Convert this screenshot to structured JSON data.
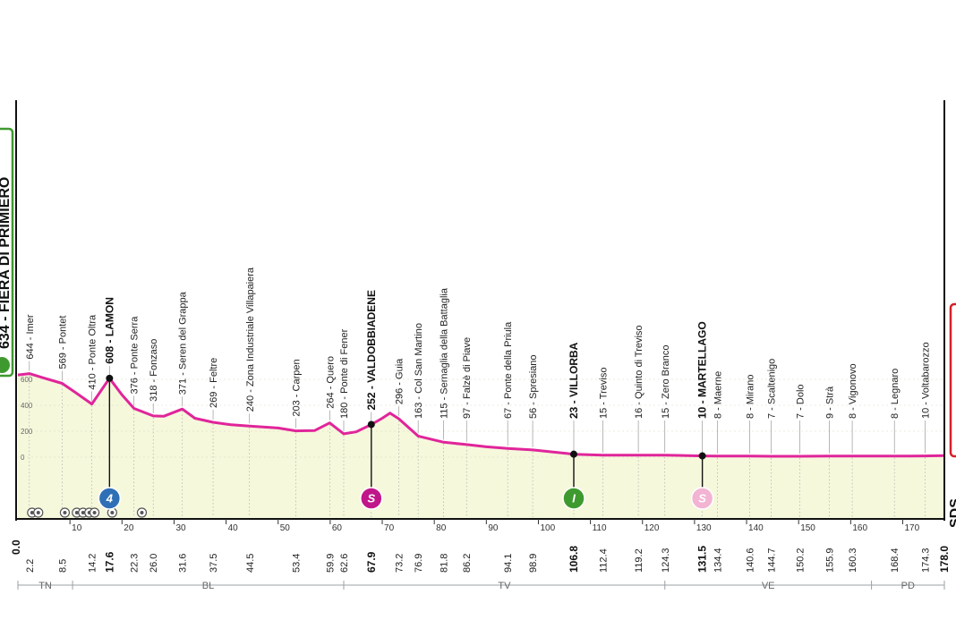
{
  "chart_data": {
    "type": "area",
    "x_unit": "km",
    "xlim": [
      0,
      178
    ],
    "ylim": [
      0,
      700
    ],
    "y_ticks": [
      "200",
      "400",
      "600",
      "0"
    ],
    "x_ticks": [
      "10",
      "20",
      "30",
      "40",
      "50",
      "60",
      "70",
      "80",
      "90",
      "100",
      "110",
      "120",
      "130",
      "140",
      "150",
      "160",
      "170"
    ],
    "profile": [
      [
        0,
        634
      ],
      [
        2.2,
        644
      ],
      [
        5,
        610
      ],
      [
        8.5,
        569
      ],
      [
        11,
        500
      ],
      [
        14.2,
        410
      ],
      [
        17.6,
        608
      ],
      [
        20,
        480
      ],
      [
        22.3,
        376
      ],
      [
        26,
        318
      ],
      [
        28,
        315
      ],
      [
        31.6,
        371
      ],
      [
        34,
        300
      ],
      [
        37.5,
        269
      ],
      [
        41,
        250
      ],
      [
        44.5,
        240
      ],
      [
        50,
        225
      ],
      [
        53.4,
        203
      ],
      [
        57,
        205
      ],
      [
        59.9,
        264
      ],
      [
        62.6,
        180
      ],
      [
        65,
        195
      ],
      [
        67.9,
        252
      ],
      [
        70,
        300
      ],
      [
        71.5,
        340
      ],
      [
        73.2,
        296
      ],
      [
        76.9,
        163
      ],
      [
        81.8,
        115
      ],
      [
        86.2,
        97
      ],
      [
        90,
        80
      ],
      [
        94.1,
        67
      ],
      [
        98.9,
        56
      ],
      [
        106.8,
        23
      ],
      [
        112.4,
        15
      ],
      [
        119.2,
        16
      ],
      [
        124.3,
        15
      ],
      [
        131.5,
        10
      ],
      [
        134.4,
        8
      ],
      [
        140.6,
        8
      ],
      [
        144.7,
        7
      ],
      [
        150.2,
        7
      ],
      [
        155.9,
        9
      ],
      [
        160.3,
        8
      ],
      [
        168.4,
        8
      ],
      [
        174.3,
        10
      ],
      [
        178,
        12
      ]
    ],
    "start": {
      "name": "FIERA DI PRIMIERO",
      "alt": "634",
      "km": "0.0"
    },
    "finish": {
      "name": "SDS"
    },
    "places": [
      {
        "km": 2.2,
        "km_label": "2.2",
        "label": "644 - Imer",
        "bold": false
      },
      {
        "km": 8.5,
        "km_label": "8.5",
        "label": "569 - Pontet",
        "bold": false
      },
      {
        "km": 14.2,
        "km_label": "14.2",
        "label": "410 - Ponte Oltra",
        "bold": false
      },
      {
        "km": 17.6,
        "km_label": "17.6",
        "label": "608 - LAMON",
        "bold": true
      },
      {
        "km": 22.3,
        "km_label": "22.3",
        "label": "376 - Ponte Serra",
        "bold": false
      },
      {
        "km": 26.0,
        "km_label": "26.0",
        "label": "318 - Fonzaso",
        "bold": false
      },
      {
        "km": 31.6,
        "km_label": "31.6",
        "label": "371 - Seren del Grappa",
        "bold": false
      },
      {
        "km": 37.5,
        "km_label": "37.5",
        "label": "269 - Feltre",
        "bold": false
      },
      {
        "km": 44.5,
        "km_label": "44.5",
        "label": "240 - Zona Industriale Villapaiera",
        "bold": false
      },
      {
        "km": 53.4,
        "km_label": "53.4",
        "label": "203 - Carpen",
        "bold": false
      },
      {
        "km": 59.9,
        "km_label": "59.9",
        "label": "264 - Quero",
        "bold": false
      },
      {
        "km": 62.6,
        "km_label": "62.6",
        "label": "180 - Ponte di Fener",
        "bold": false
      },
      {
        "km": 67.9,
        "km_label": "67.9",
        "label": "252 - VALDOBBIADENE",
        "bold": true
      },
      {
        "km": 73.2,
        "km_label": "73.2",
        "label": "296 - Guia",
        "bold": false
      },
      {
        "km": 76.9,
        "km_label": "76.9",
        "label": "163 - Col San Martino",
        "bold": false
      },
      {
        "km": 81.8,
        "km_label": "81.8",
        "label": "115 - Sernaglia della Battaglia",
        "bold": false
      },
      {
        "km": 86.2,
        "km_label": "86.2",
        "label": "97 - Falzè di Piave",
        "bold": false
      },
      {
        "km": 94.1,
        "km_label": "94.1",
        "label": "67 - Ponte della Priula",
        "bold": false
      },
      {
        "km": 98.9,
        "km_label": "98.9",
        "label": "56 - Spresiano",
        "bold": false
      },
      {
        "km": 106.8,
        "km_label": "106.8",
        "label": "23 - VILLORBA",
        "bold": true
      },
      {
        "km": 112.4,
        "km_label": "112.4",
        "label": "15 - Treviso",
        "bold": false
      },
      {
        "km": 119.2,
        "km_label": "119.2",
        "label": "16 - Quinto di Treviso",
        "bold": false
      },
      {
        "km": 124.3,
        "km_label": "124.3",
        "label": "15 - Zero Branco",
        "bold": false
      },
      {
        "km": 131.5,
        "km_label": "131.5",
        "label": "10 - MARTELLAGO",
        "bold": true
      },
      {
        "km": 134.4,
        "km_label": "134.4",
        "label": "8 - Maerne",
        "bold": false
      },
      {
        "km": 140.6,
        "km_label": "140.6",
        "label": "8 - Mirano",
        "bold": false
      },
      {
        "km": 144.7,
        "km_label": "144.7",
        "label": "7 - Scaltenigo",
        "bold": false
      },
      {
        "km": 150.2,
        "km_label": "150.2",
        "label": "7 - Dolo",
        "bold": false
      },
      {
        "km": 155.9,
        "km_label": "155.9",
        "label": "9 - Strà",
        "bold": false
      },
      {
        "km": 160.3,
        "km_label": "160.3",
        "label": "8 - Vigonovo",
        "bold": false
      },
      {
        "km": 168.4,
        "km_label": "168.4",
        "label": "8 - Legnaro",
        "bold": false
      },
      {
        "km": 174.3,
        "km_label": "174.3",
        "label": "10 - Voltabarozzo",
        "bold": false
      },
      {
        "km": 178.0,
        "km_label": "178.0",
        "label": "",
        "bold": true
      }
    ],
    "markers": [
      {
        "km": 17.6,
        "type": "climb",
        "text": "4",
        "color": "#2f6fb6"
      },
      {
        "km": 67.9,
        "type": "sprint",
        "text": "S",
        "color": "#c0168a"
      },
      {
        "km": 106.8,
        "type": "intermediate",
        "text": "I",
        "color": "#3e9a2e"
      },
      {
        "km": 131.5,
        "type": "sprint",
        "text": "S",
        "color": "#f3b3d2"
      }
    ],
    "small_markers_km": [
      2.2,
      3.4,
      8.5,
      10.8,
      12.0,
      13.2,
      14.2,
      17.6,
      23.3
    ],
    "regions": [
      {
        "label": "TN",
        "from": 0,
        "to": 10.5
      },
      {
        "label": "BL",
        "from": 10.5,
        "to": 62.6
      },
      {
        "label": "TV",
        "from": 62.6,
        "to": 124.3
      },
      {
        "label": "VE",
        "from": 124.3,
        "to": 164
      },
      {
        "label": "PD",
        "from": 164,
        "to": 178
      }
    ],
    "colors": {
      "profile_line": "#e0259a",
      "profile_fill": "#f6f8dc",
      "start_green": "#3e9a2e",
      "finish_red": "#d42027"
    }
  }
}
